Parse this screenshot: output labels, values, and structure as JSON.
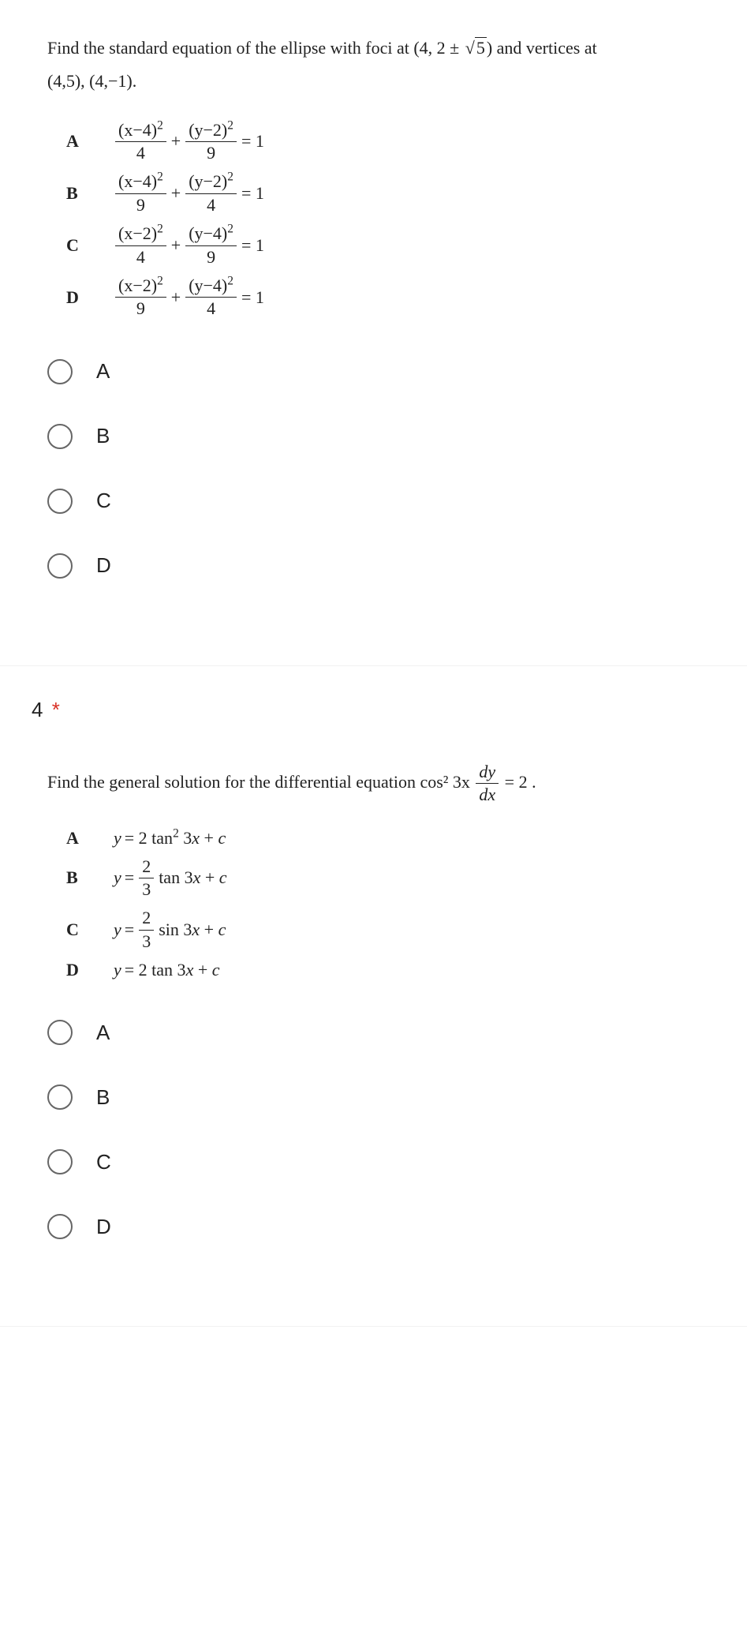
{
  "q3": {
    "prompt_pre": "Find the standard equation of the ellipse with foci at ",
    "foci": "(4, 2 ± √5)",
    "prompt_mid": " and vertices at ",
    "verts": "(4,5), (4,−1).",
    "choices": {
      "A": {
        "n1": "(x−4)",
        "d1": "4",
        "n2": "(y−2)",
        "d2": "9"
      },
      "B": {
        "n1": "(x−4)",
        "d1": "9",
        "n2": "(y−2)",
        "d2": "4"
      },
      "C": {
        "n1": "(x−2)",
        "d1": "4",
        "n2": "(y−4)",
        "d2": "9"
      },
      "D": {
        "n1": "(x−2)",
        "d1": "9",
        "n2": "(y−4)",
        "d2": "4"
      }
    },
    "radios": [
      "A",
      "B",
      "C",
      "D"
    ]
  },
  "q4": {
    "number": "4",
    "required": "*",
    "prompt_pre": "Find the general solution for the differential equation ",
    "eqn_lhs": "cos² 3x",
    "eqn_frac_num": "dy",
    "eqn_frac_den": "dx",
    "eqn_rhs": " = 2 .",
    "choices": {
      "A": "y = 2 tan² 3x + c",
      "B_pre": "y = ",
      "B_num": "2",
      "B_den": "3",
      "B_post": " tan 3x + c",
      "C_pre": "y = ",
      "C_num": "2",
      "C_den": "3",
      "C_post": " sin 3x + c",
      "D": "y = 2 tan 3x + c"
    },
    "radios": [
      "A",
      "B",
      "C",
      "D"
    ]
  },
  "labels": {
    "A": "A",
    "B": "B",
    "C": "C",
    "D": "D"
  },
  "style": {
    "font_serif": "Times New Roman",
    "font_sans": "Arial",
    "text_color": "#222222",
    "required_color": "#d93025",
    "radio_border": "#666666",
    "bg": "#ffffff"
  }
}
